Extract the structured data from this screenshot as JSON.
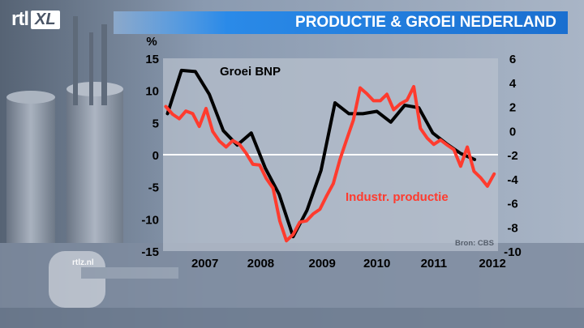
{
  "header": {
    "logo_rtl": "rtl",
    "logo_xl": "XL",
    "title": "PRODUCTIE & GROEI NEDERLAND"
  },
  "watermark": "rtlz.nl",
  "colors": {
    "groei": "#000000",
    "productie": "#ff3b2e",
    "title_bar": "#1a78e0"
  },
  "chart_data": {
    "type": "line",
    "title": "PRODUCTIE & GROEI NEDERLAND",
    "left_axis_unit": "%",
    "ylim_left": [
      -15,
      15
    ],
    "left_ticks": [
      15,
      10,
      5,
      0,
      -5,
      -10,
      -15
    ],
    "ylim_right": [
      -10,
      6
    ],
    "right_ticks": [
      6,
      4,
      2,
      0,
      -2,
      -4,
      -6,
      -8,
      -10
    ],
    "x_ticks": [
      "2007",
      "2008",
      "2009",
      "2010",
      "2011",
      "2012"
    ],
    "xlim": [
      2006.25,
      2012.25
    ],
    "source": "Bron: CBS",
    "grid": false,
    "series": [
      {
        "name": "Groei BNP",
        "axis": "right",
        "x": [
          2006.33,
          2006.58,
          2006.83,
          2007.08,
          2007.33,
          2007.58,
          2007.83,
          2008.08,
          2008.33,
          2008.58,
          2008.83,
          2009.08,
          2009.33,
          2009.58,
          2009.83,
          2010.08,
          2010.33,
          2010.58,
          2010.83,
          2011.08,
          2011.33,
          2011.58,
          2011.83
        ],
        "values": [
          1.4,
          5.0,
          4.9,
          3.0,
          0.0,
          -1.2,
          -0.2,
          -3.1,
          -5.3,
          -8.8,
          -6.6,
          -3.3,
          2.3,
          1.4,
          1.4,
          1.6,
          0.7,
          2.1,
          1.9,
          -0.2,
          -1.1,
          -1.9,
          -2.4
        ]
      },
      {
        "name": "Industr. productie",
        "axis": "left",
        "x": [
          2006.3,
          2006.42,
          2006.54,
          2006.66,
          2006.78,
          2006.9,
          2007.02,
          2007.14,
          2007.26,
          2007.38,
          2007.5,
          2007.62,
          2007.74,
          2007.86,
          2007.98,
          2008.1,
          2008.22,
          2008.34,
          2008.46,
          2008.58,
          2008.7,
          2008.82,
          2008.94,
          2009.06,
          2009.18,
          2009.3,
          2009.42,
          2009.54,
          2009.66,
          2009.78,
          2009.9,
          2010.02,
          2010.14,
          2010.26,
          2010.38,
          2010.5,
          2010.62,
          2010.74,
          2010.86,
          2010.98,
          2011.1,
          2011.22,
          2011.34,
          2011.46,
          2011.58,
          2011.7,
          2011.82,
          2011.94,
          2012.06,
          2012.18
        ],
        "values": [
          7.5,
          6.3,
          5.6,
          6.8,
          6.4,
          4.4,
          7.2,
          3.6,
          2.1,
          1.2,
          2.2,
          1.6,
          0.2,
          -1.5,
          -1.6,
          -3.7,
          -5.2,
          -10.3,
          -13.4,
          -12.4,
          -10.5,
          -10.3,
          -9.2,
          -8.5,
          -6.4,
          -4.5,
          -0.7,
          2.4,
          5.4,
          10.4,
          9.5,
          8.4,
          8.4,
          9.4,
          7.0,
          7.9,
          8.5,
          10.6,
          4.1,
          2.6,
          1.6,
          2.3,
          1.5,
          0.8,
          -1.8,
          1.2,
          -2.6,
          -3.6,
          -4.9,
          -3.0
        ]
      }
    ],
    "annotations": [
      {
        "text": "Groei BNP",
        "series": "Groei BNP"
      },
      {
        "text": "Industr. productie",
        "series": "Industr. productie"
      }
    ]
  }
}
